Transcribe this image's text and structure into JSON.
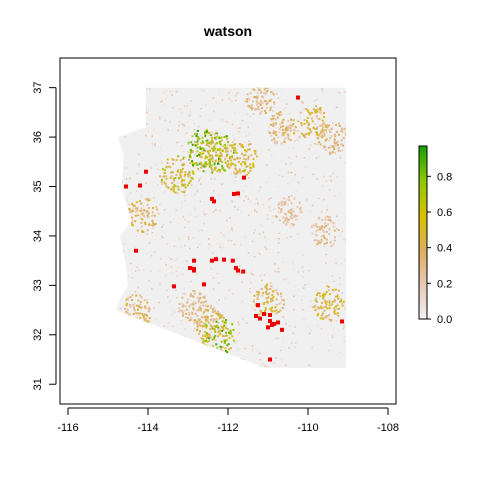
{
  "chart_data": {
    "type": "heatmap",
    "title": "watson",
    "xlabel": "",
    "ylabel": "",
    "xlim": [
      -116.2,
      -107.8
    ],
    "ylim": [
      30.6,
      37.6
    ],
    "x_ticks": [
      -116,
      -114,
      -112,
      -110,
      -108
    ],
    "x_tick_labels": [
      "-116",
      "-114",
      "-112",
      "-110",
      "-108"
    ],
    "y_ticks": [
      31,
      32,
      33,
      34,
      35,
      36,
      37
    ],
    "y_tick_labels": [
      "31",
      "32",
      "33",
      "34",
      "35",
      "36",
      "37"
    ],
    "grid": false,
    "region_fill_color": "#f0f0f0",
    "colorbar": {
      "min": 0.0,
      "max": 0.97,
      "ticks": [
        0.0,
        0.2,
        0.4,
        0.6,
        0.8
      ],
      "tick_labels": [
        "0.0",
        "0.2",
        "0.4",
        "0.6",
        "0.8"
      ],
      "colors": [
        "#f2f2f2",
        "#e8c8b8",
        "#dcae60",
        "#d8c000",
        "#8ec800",
        "#18a000"
      ]
    },
    "region_outline_lonlat": [
      [
        -114.05,
        37.0
      ],
      [
        -109.05,
        37.0
      ],
      [
        -109.05,
        31.33
      ],
      [
        -111.07,
        31.33
      ],
      [
        -114.8,
        32.5
      ],
      [
        -114.7,
        32.72
      ],
      [
        -114.5,
        33.0
      ],
      [
        -114.55,
        33.4
      ],
      [
        -114.7,
        34.0
      ],
      [
        -114.4,
        34.3
      ],
      [
        -114.6,
        34.8
      ],
      [
        -114.65,
        35.1
      ],
      [
        -114.6,
        35.6
      ],
      [
        -114.75,
        36.0
      ],
      [
        -114.05,
        36.2
      ]
    ],
    "suitability_hotspots": [
      {
        "lon": -112.6,
        "lat": 35.75,
        "value": 0.9
      },
      {
        "lon": -112.3,
        "lat": 35.7,
        "value": 0.85
      },
      {
        "lon": -113.3,
        "lat": 35.25,
        "value": 0.7
      },
      {
        "lon": -111.7,
        "lat": 35.6,
        "value": 0.6
      },
      {
        "lon": -110.7,
        "lat": 36.2,
        "value": 0.45
      },
      {
        "lon": -109.9,
        "lat": 36.3,
        "value": 0.55
      },
      {
        "lon": -109.4,
        "lat": 36.0,
        "value": 0.4
      },
      {
        "lon": -111.2,
        "lat": 36.8,
        "value": 0.4
      },
      {
        "lon": -112.3,
        "lat": 32.0,
        "value": 0.85
      },
      {
        "lon": -112.5,
        "lat": 32.3,
        "value": 0.5
      },
      {
        "lon": -111.0,
        "lat": 32.7,
        "value": 0.5
      },
      {
        "lon": -109.5,
        "lat": 32.65,
        "value": 0.6
      },
      {
        "lon": -114.15,
        "lat": 34.45,
        "value": 0.5
      },
      {
        "lon": -114.3,
        "lat": 32.5,
        "value": 0.45
      },
      {
        "lon": -109.6,
        "lat": 34.1,
        "value": 0.35
      },
      {
        "lon": -110.5,
        "lat": 34.5,
        "value": 0.3
      },
      {
        "lon": -112.9,
        "lat": 32.6,
        "value": 0.35
      }
    ],
    "occurrence_points": [
      {
        "lon": -110.25,
        "lat": 36.8
      },
      {
        "lon": -114.55,
        "lat": 35.0
      },
      {
        "lon": -114.2,
        "lat": 35.02
      },
      {
        "lon": -114.05,
        "lat": 35.3
      },
      {
        "lon": -111.6,
        "lat": 35.18
      },
      {
        "lon": -111.85,
        "lat": 34.85
      },
      {
        "lon": -111.75,
        "lat": 34.86
      },
      {
        "lon": -112.4,
        "lat": 34.75
      },
      {
        "lon": -112.35,
        "lat": 34.7
      },
      {
        "lon": -114.3,
        "lat": 33.7
      },
      {
        "lon": -112.85,
        "lat": 33.5
      },
      {
        "lon": -112.4,
        "lat": 33.5
      },
      {
        "lon": -112.3,
        "lat": 33.53
      },
      {
        "lon": -112.1,
        "lat": 33.52
      },
      {
        "lon": -111.88,
        "lat": 33.5
      },
      {
        "lon": -112.95,
        "lat": 33.35
      },
      {
        "lon": -112.85,
        "lat": 33.33
      },
      {
        "lon": -112.85,
        "lat": 33.3
      },
      {
        "lon": -111.8,
        "lat": 33.35
      },
      {
        "lon": -111.75,
        "lat": 33.3
      },
      {
        "lon": -111.62,
        "lat": 33.28
      },
      {
        "lon": -112.6,
        "lat": 33.02
      },
      {
        "lon": -113.35,
        "lat": 32.98
      },
      {
        "lon": -111.25,
        "lat": 32.6
      },
      {
        "lon": -111.1,
        "lat": 32.42
      },
      {
        "lon": -110.95,
        "lat": 32.4
      },
      {
        "lon": -111.3,
        "lat": 32.38
      },
      {
        "lon": -111.2,
        "lat": 32.33
      },
      {
        "lon": -110.95,
        "lat": 32.28
      },
      {
        "lon": -110.9,
        "lat": 32.2
      },
      {
        "lon": -110.85,
        "lat": 32.22
      },
      {
        "lon": -110.75,
        "lat": 32.25
      },
      {
        "lon": -111.0,
        "lat": 32.15
      },
      {
        "lon": -110.65,
        "lat": 32.1
      },
      {
        "lon": -109.15,
        "lat": 32.27
      },
      {
        "lon": -110.95,
        "lat": 31.5
      }
    ]
  }
}
